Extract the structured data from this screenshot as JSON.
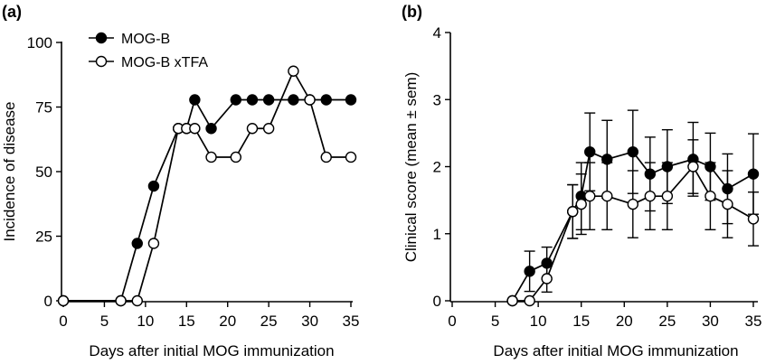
{
  "chart_data": [
    {
      "type": "line",
      "panel_label": "(a)",
      "xlabel": "Days after initial MOG immunization",
      "ylabel": "Incidence of disease",
      "xlim": [
        0,
        35
      ],
      "ylim": [
        0,
        100
      ],
      "xticks": [
        0,
        5,
        10,
        15,
        20,
        25,
        30,
        35
      ],
      "yticks": [
        0,
        25,
        50,
        75,
        100
      ],
      "grid": false,
      "legend_position": "top-left",
      "series": [
        {
          "name": "MOG-B",
          "marker": "filled-circle",
          "x": [
            0,
            7,
            9,
            11,
            14,
            15,
            16,
            18,
            21,
            23,
            25,
            28,
            30,
            32,
            35
          ],
          "y": [
            0,
            0,
            22.2,
            44.4,
            66.7,
            66.7,
            77.8,
            66.7,
            77.8,
            77.8,
            77.8,
            77.8,
            77.8,
            77.8,
            77.8
          ]
        },
        {
          "name": "MOG-B xTFA",
          "marker": "open-circle",
          "x": [
            0,
            7,
            9,
            11,
            14,
            15,
            16,
            18,
            21,
            23,
            25,
            28,
            30,
            32,
            35
          ],
          "y": [
            0,
            0,
            0,
            22.2,
            66.7,
            66.7,
            66.7,
            55.6,
            55.6,
            66.7,
            66.7,
            88.9,
            77.8,
            55.6,
            55.6
          ]
        }
      ]
    },
    {
      "type": "line",
      "panel_label": "(b)",
      "xlabel": "Days after initial MOG immunization",
      "ylabel": "Clinical score (mean ± sem)",
      "xlim": [
        0,
        35
      ],
      "ylim": [
        0,
        4
      ],
      "xticks": [
        0,
        5,
        10,
        15,
        20,
        25,
        30,
        35
      ],
      "yticks": [
        0,
        1,
        2,
        3,
        4
      ],
      "grid": false,
      "error_bars": "sem",
      "series": [
        {
          "name": "MOG-B",
          "marker": "filled-circle",
          "x": [
            7,
            9,
            11,
            14,
            15,
            16,
            18,
            21,
            23,
            25,
            28,
            30,
            32,
            35
          ],
          "y": [
            0,
            0.44,
            0.56,
            1.33,
            1.56,
            2.22,
            2.11,
            2.22,
            1.89,
            2.0,
            2.11,
            2.0,
            1.67,
            1.89
          ],
          "sem": [
            0,
            0.3,
            0.24,
            0.4,
            0.5,
            0.58,
            0.58,
            0.62,
            0.55,
            0.55,
            0.55,
            0.5,
            0.52,
            0.6
          ]
        },
        {
          "name": "MOG-B xTFA",
          "marker": "open-circle",
          "x": [
            7,
            9,
            11,
            14,
            15,
            16,
            18,
            21,
            23,
            25,
            28,
            30,
            32,
            35
          ],
          "y": [
            0,
            0,
            0.33,
            1.33,
            1.44,
            1.56,
            1.56,
            1.44,
            1.56,
            1.56,
            2.0,
            1.56,
            1.44,
            1.22
          ],
          "sem": [
            0,
            0,
            0.2,
            0.4,
            0.45,
            0.5,
            0.5,
            0.5,
            0.5,
            0.5,
            0.4,
            0.5,
            0.5,
            0.4
          ]
        }
      ]
    }
  ]
}
